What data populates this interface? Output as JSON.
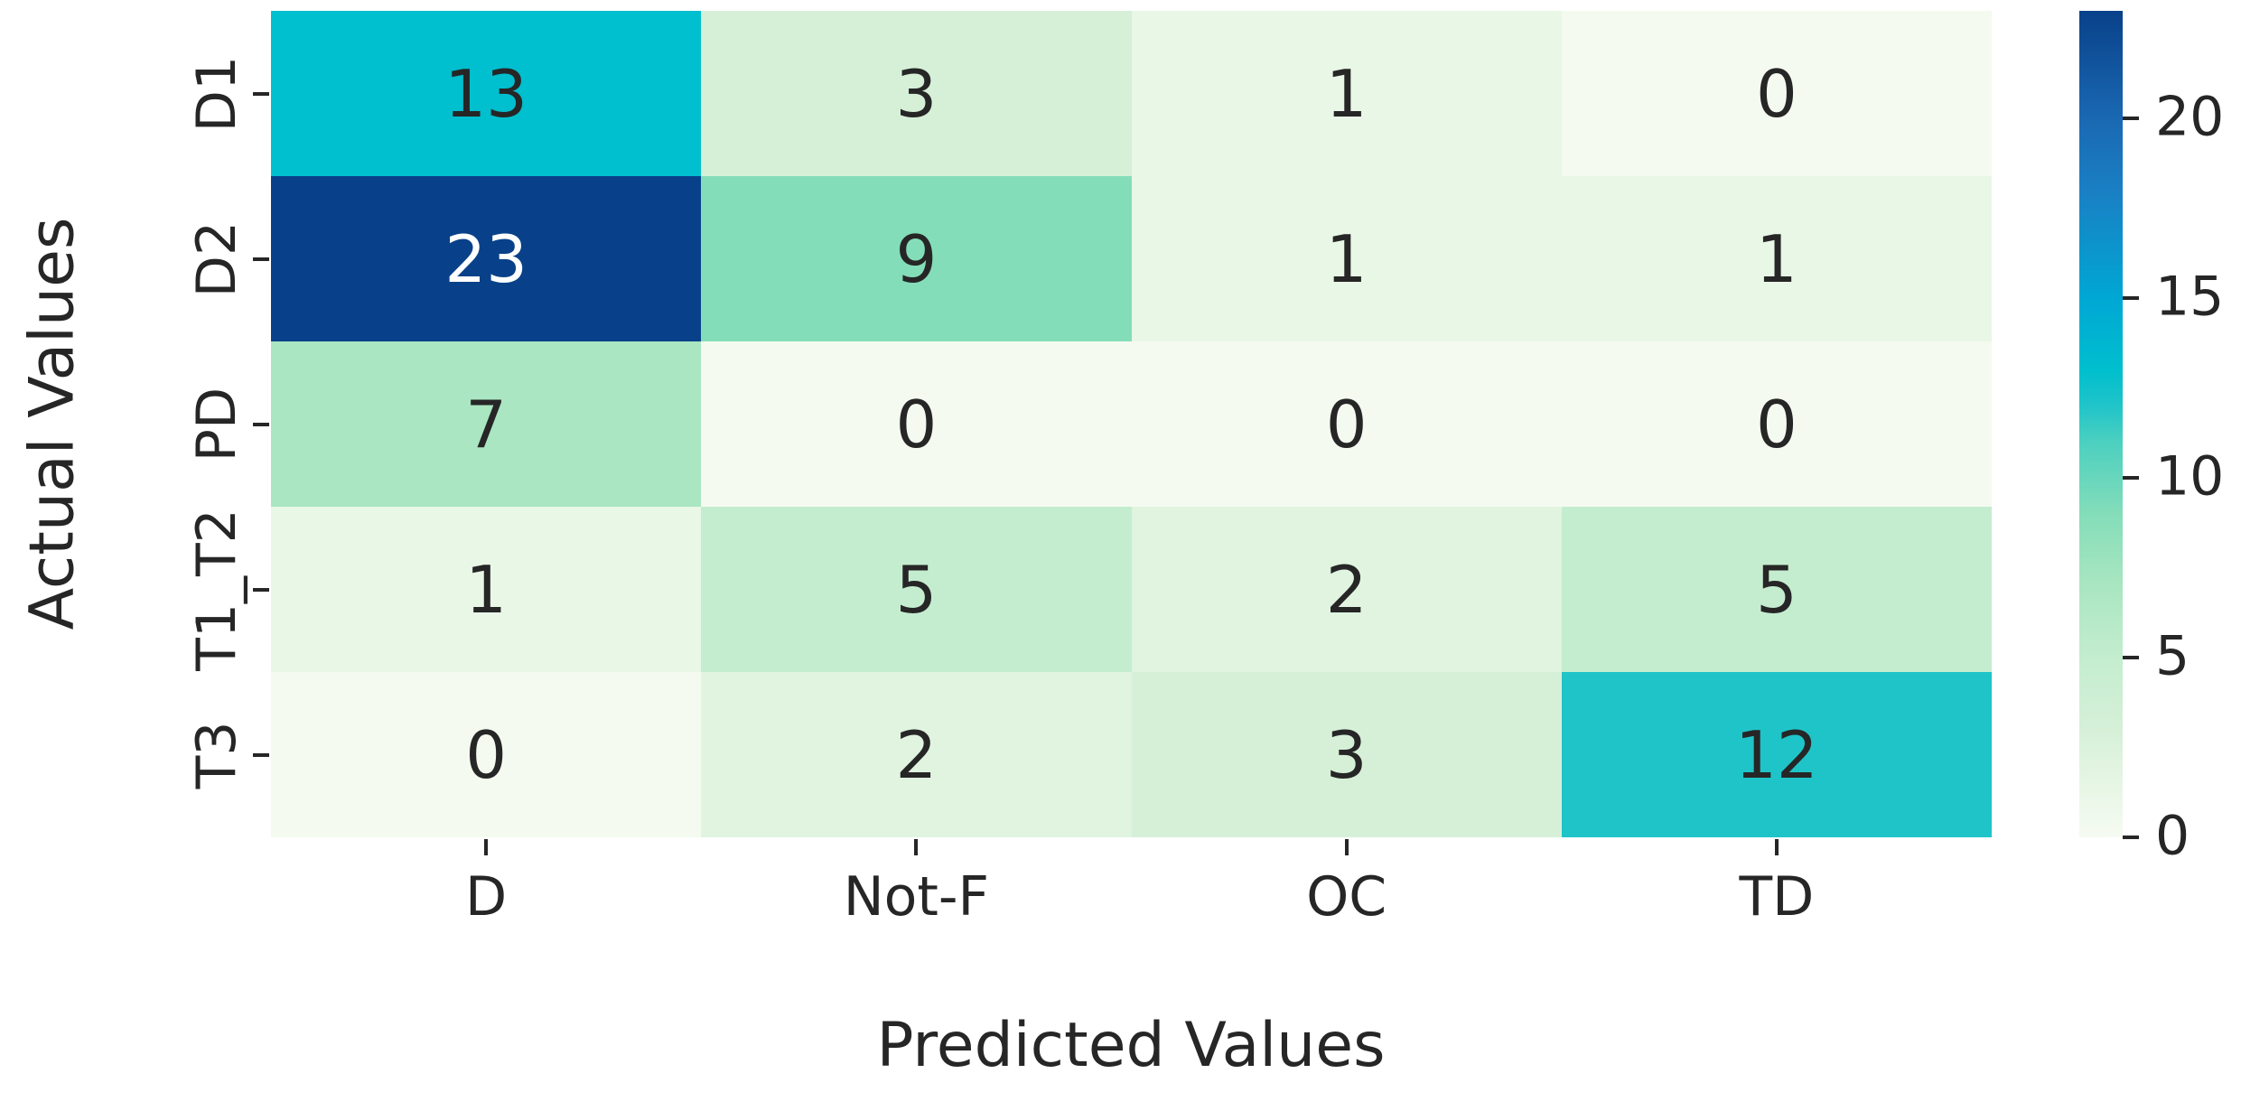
{
  "figure": {
    "background": "#ffffff",
    "text_color": "#262626"
  },
  "chart_data": {
    "type": "heatmap",
    "title": "",
    "xlabel": "Predicted Values",
    "ylabel": "Actual Values",
    "x_categories": [
      "D",
      "Not-F",
      "OC",
      "TD"
    ],
    "y_categories": [
      "D1",
      "D2",
      "PD",
      "T1_T2",
      "T3"
    ],
    "matrix": [
      [
        13,
        3,
        1,
        0
      ],
      [
        23,
        9,
        1,
        1
      ],
      [
        7,
        0,
        0,
        0
      ],
      [
        1,
        5,
        2,
        5
      ],
      [
        0,
        2,
        3,
        12
      ]
    ],
    "vmin": 0,
    "vmax": 23,
    "annotations_on": true,
    "grid_lines": false,
    "cell_colors": [
      [
        "#00bfce",
        "#d6f0d8",
        "#e9f7e6",
        "#f4faf0"
      ],
      [
        "#084189",
        "#84ddb9",
        "#e9f7e6",
        "#e9f7e6"
      ],
      [
        "#a9e6c1",
        "#f4faf0",
        "#f4faf0",
        "#f4faf0"
      ],
      [
        "#e9f7e6",
        "#c4edcf",
        "#e0f4e0",
        "#c4edcf"
      ],
      [
        "#f4faf0",
        "#e0f4e0",
        "#d6f0d8",
        "#1fc4c9"
      ]
    ],
    "cell_text_colors": [
      [
        "#262626",
        "#262626",
        "#262626",
        "#262626"
      ],
      [
        "#ffffff",
        "#262626",
        "#262626",
        "#262626"
      ],
      [
        "#262626",
        "#262626",
        "#262626",
        "#262626"
      ],
      [
        "#262626",
        "#262626",
        "#262626",
        "#262626"
      ],
      [
        "#262626",
        "#262626",
        "#262626",
        "#262626"
      ]
    ],
    "colorbar": {
      "position": "right",
      "ticks": [
        0,
        5,
        10,
        15,
        20
      ],
      "gradient_stops": [
        {
          "pos": 0.0,
          "color": "#f6fbf2"
        },
        {
          "pos": 0.087,
          "color": "#e1f4e0"
        },
        {
          "pos": 0.13,
          "color": "#d6f0d8"
        },
        {
          "pos": 0.217,
          "color": "#c4edcf"
        },
        {
          "pos": 0.304,
          "color": "#a9e6c1"
        },
        {
          "pos": 0.391,
          "color": "#84ddb9"
        },
        {
          "pos": 0.478,
          "color": "#4cd0c0"
        },
        {
          "pos": 0.522,
          "color": "#20c4c9"
        },
        {
          "pos": 0.565,
          "color": "#00bfce"
        },
        {
          "pos": 0.652,
          "color": "#00a7d4"
        },
        {
          "pos": 0.783,
          "color": "#1a7fc4"
        },
        {
          "pos": 0.87,
          "color": "#1a68b2"
        },
        {
          "pos": 1.0,
          "color": "#084189"
        }
      ]
    }
  }
}
